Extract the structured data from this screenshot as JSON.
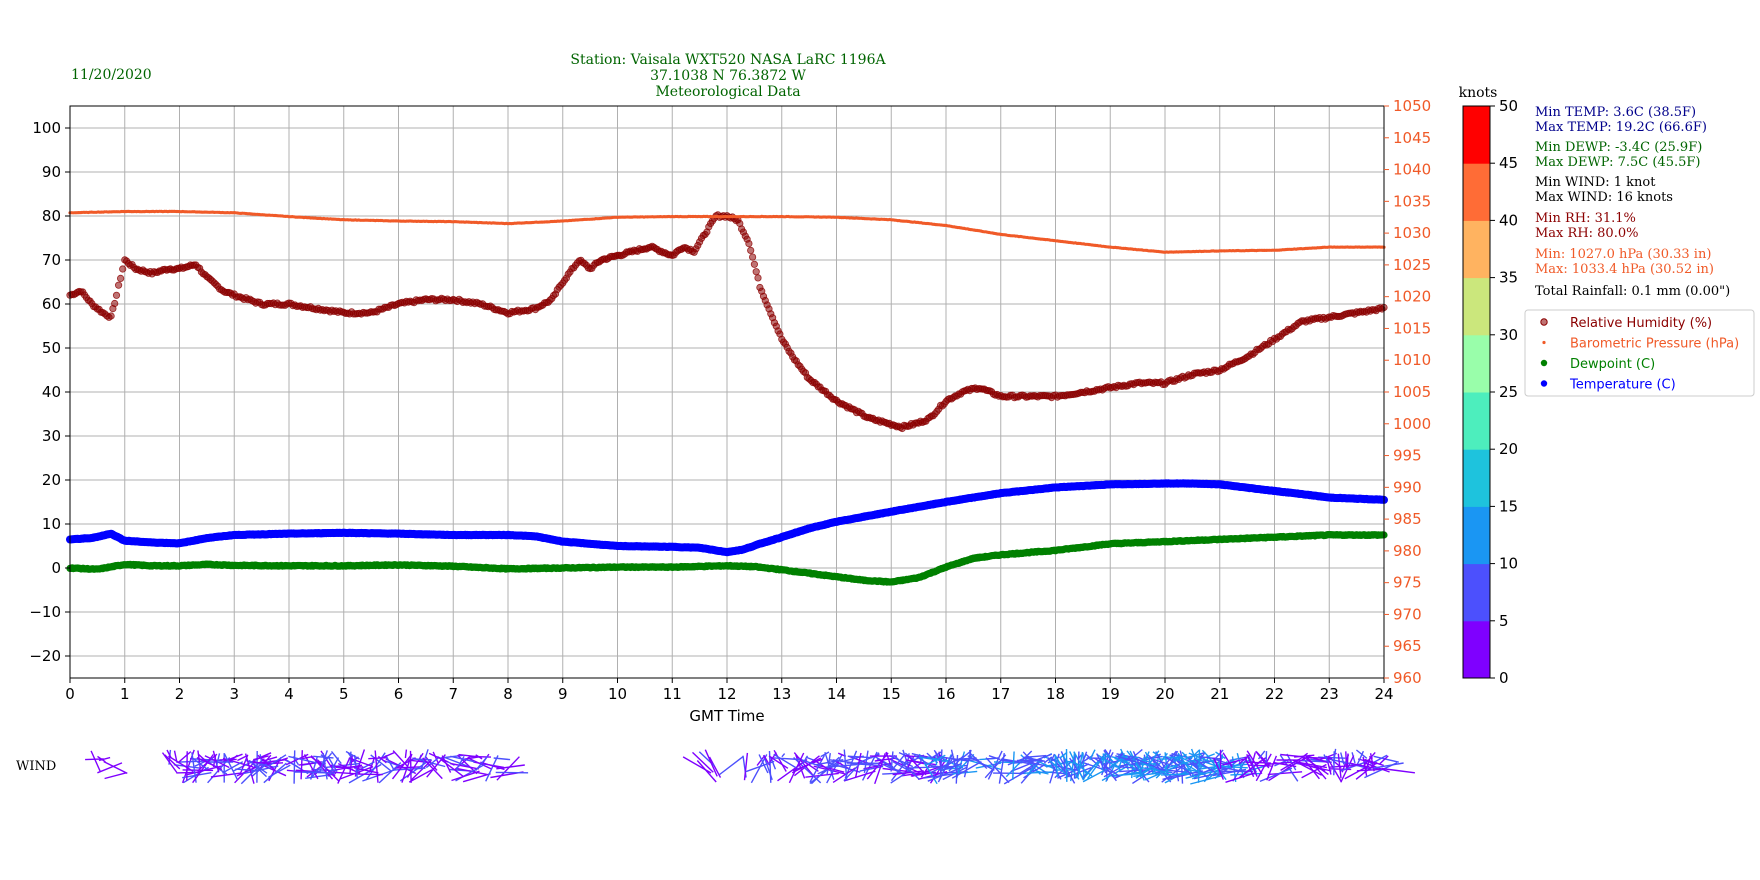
{
  "header": {
    "date": "11/20/2020",
    "title_lines": [
      "Station:  Vaisala WXT520  NASA LaRC 1196A",
      "37.1038 N 76.3872 W",
      "Meteorological Data"
    ]
  },
  "colors": {
    "title_green": "#006400",
    "rh": "#8b0000",
    "pressure": "#f05a28",
    "dewpoint": "#008000",
    "temperature": "#0000ff",
    "min_max_temp": "#00008b",
    "wind_text": "#000000"
  },
  "stats": [
    {
      "key": "min_temp",
      "text": "Min TEMP: 3.6C (38.5F)",
      "color": "#00008b"
    },
    {
      "key": "max_temp",
      "text": "Max TEMP: 19.2C (66.6F)",
      "color": "#00008b"
    },
    {
      "key": "min_dewp",
      "text": "Min DEWP: -3.4C (25.9F)",
      "color": "#006400"
    },
    {
      "key": "max_dewp",
      "text": "Max DEWP: 7.5C (45.5F)",
      "color": "#006400"
    },
    {
      "key": "min_wind",
      "text": "Min WIND: 1 knot",
      "color": "#000000"
    },
    {
      "key": "max_wind",
      "text": "Max WIND: 16 knots",
      "color": "#000000"
    },
    {
      "key": "min_rh",
      "text": "Min RH: 31.1%",
      "color": "#8b0000"
    },
    {
      "key": "max_rh",
      "text": "Max RH: 80.0%",
      "color": "#8b0000"
    },
    {
      "key": "min_press",
      "text": "Min: 1027.0 hPa (30.33 in)",
      "color": "#f05a28"
    },
    {
      "key": "max_press",
      "text": "Max: 1033.4 hPa (30.52 in)",
      "color": "#f05a28"
    },
    {
      "key": "rain",
      "text": "Total Rainfall: 0.1 mm (0.00\")",
      "color": "#000000"
    }
  ],
  "chart_data": {
    "type": "scatter",
    "xlabel": "GMT Time",
    "xlim": [
      0,
      24
    ],
    "x_ticks": [
      "0",
      "1",
      "2",
      "3",
      "4",
      "5",
      "6",
      "7",
      "8",
      "9",
      "10",
      "11",
      "12",
      "13",
      "14",
      "15",
      "16",
      "17",
      "18",
      "19",
      "20",
      "21",
      "22",
      "23",
      "24"
    ],
    "left_axis": {
      "ylim": [
        -25,
        105
      ],
      "ticks": [
        "−20",
        "−10",
        "0",
        "10",
        "20",
        "30",
        "40",
        "50",
        "60",
        "70",
        "80",
        "90",
        "100"
      ],
      "tick_values": [
        -20,
        -10,
        0,
        10,
        20,
        30,
        40,
        50,
        60,
        70,
        80,
        90,
        100
      ]
    },
    "right_axis": {
      "ylim": [
        960,
        1050
      ],
      "ticks": [
        "960",
        "965",
        "970",
        "975",
        "980",
        "985",
        "990",
        "995",
        "1000",
        "1005",
        "1010",
        "1015",
        "1020",
        "1025",
        "1030",
        "1035",
        "1040",
        "1045",
        "1050"
      ],
      "tick_values": [
        960,
        965,
        970,
        975,
        980,
        985,
        990,
        995,
        1000,
        1005,
        1010,
        1015,
        1020,
        1025,
        1030,
        1035,
        1040,
        1045,
        1050
      ],
      "color": "#f05a28"
    },
    "grid": true,
    "legend": {
      "placement": "right",
      "entries": [
        {
          "label": "Relative Humidity (%)",
          "color": "#8b0000",
          "text_color": "#8b0000"
        },
        {
          "label": "Barometric Pressure (hPa)",
          "color": "#f05a28",
          "text_color": "#f05a28"
        },
        {
          "label": "Dewpoint (C)",
          "color": "#008000",
          "text_color": "#008000"
        },
        {
          "label": "Temperature (C)",
          "color": "#0000ff",
          "text_color": "#0000ff"
        }
      ]
    },
    "series": [
      {
        "name": "Relative Humidity (%)",
        "axis": "left",
        "color": "#8b0000",
        "x": [
          0,
          0.2,
          0.4,
          0.6,
          0.75,
          0.85,
          1.0,
          1.2,
          1.5,
          1.8,
          2.0,
          2.3,
          2.5,
          2.8,
          3.0,
          3.5,
          4.0,
          4.5,
          5.0,
          5.5,
          6.0,
          6.5,
          7.0,
          7.5,
          8.0,
          8.5,
          8.8,
          9.0,
          9.3,
          9.5,
          9.7,
          10.0,
          10.3,
          10.6,
          10.8,
          11.0,
          11.2,
          11.4,
          11.6,
          11.8,
          12.0,
          12.2,
          12.4,
          12.6,
          12.8,
          13.0,
          13.2,
          13.5,
          13.8,
          14.0,
          14.3,
          14.6,
          14.9,
          15.2,
          15.5,
          15.7,
          16.0,
          16.3,
          16.6,
          16.8,
          17.0,
          17.5,
          18.0,
          18.5,
          19.0,
          19.5,
          20.0,
          20.5,
          21.0,
          21.5,
          22.0,
          22.5,
          23.0,
          23.5,
          24.0
        ],
        "y": [
          62,
          63,
          60,
          58,
          57,
          62,
          70,
          68,
          67,
          68,
          68,
          69,
          66,
          63,
          62,
          60,
          60,
          59,
          58,
          58,
          60,
          61,
          61,
          60,
          58,
          59,
          61,
          65,
          70,
          68,
          70,
          71,
          72,
          73,
          72,
          71,
          73,
          72,
          76,
          80,
          80,
          79,
          74,
          64,
          58,
          52,
          48,
          43,
          40,
          38,
          36,
          34,
          33,
          32,
          33,
          34,
          38,
          40,
          41,
          40,
          39,
          39,
          39,
          40,
          41,
          42,
          42,
          44,
          45,
          48,
          52,
          56,
          57,
          58,
          59
        ]
      },
      {
        "name": "Barometric Pressure (hPa)",
        "axis": "right",
        "color": "#f05a28",
        "x": [
          0,
          1,
          2,
          3,
          4,
          5,
          6,
          7,
          8,
          9,
          10,
          11,
          12,
          13,
          14,
          15,
          16,
          17,
          18,
          19,
          20,
          21,
          22,
          23,
          24
        ],
        "y": [
          1033.2,
          1033.4,
          1033.4,
          1033.2,
          1032.6,
          1032.1,
          1031.9,
          1031.8,
          1031.5,
          1031.9,
          1032.5,
          1032.6,
          1032.6,
          1032.6,
          1032.5,
          1032.1,
          1031.2,
          1029.8,
          1028.8,
          1027.8,
          1027.0,
          1027.2,
          1027.3,
          1027.8,
          1027.8
        ]
      },
      {
        "name": "Dewpoint (C)",
        "axis": "left",
        "color": "#008000",
        "x": [
          0,
          0.5,
          1.0,
          1.5,
          2.0,
          2.5,
          3,
          4,
          5,
          6,
          7,
          8,
          9,
          10,
          11,
          12,
          12.5,
          13,
          13.5,
          14,
          14.5,
          15,
          15.5,
          16,
          16.5,
          17,
          18,
          19,
          20,
          21,
          22,
          23,
          24
        ],
        "y": [
          0,
          -0.3,
          0.8,
          0.5,
          0.5,
          0.8,
          0.6,
          0.5,
          0.5,
          0.7,
          0.4,
          -0.2,
          0,
          0.2,
          0.2,
          0.5,
          0.3,
          -0.4,
          -1.2,
          -2.0,
          -2.8,
          -3.2,
          -2.2,
          0.2,
          2.2,
          3.0,
          4.0,
          5.5,
          6.0,
          6.5,
          7.0,
          7.5,
          7.5
        ]
      },
      {
        "name": "Temperature (C)",
        "axis": "left",
        "color": "#0000ff",
        "x": [
          0,
          0.4,
          0.75,
          1.0,
          1.5,
          2.0,
          2.5,
          3,
          4,
          5,
          6,
          7,
          8,
          8.5,
          9,
          10,
          11,
          11.5,
          12,
          12.3,
          12.6,
          13,
          13.5,
          14,
          15,
          16,
          17,
          18,
          19,
          20,
          20.5,
          21,
          22,
          22.5,
          23,
          24
        ],
        "y": [
          6.5,
          6.8,
          7.8,
          6.2,
          5.8,
          5.6,
          6.8,
          7.5,
          7.8,
          8.0,
          7.8,
          7.5,
          7.5,
          7.2,
          6.0,
          5.0,
          4.8,
          4.6,
          3.6,
          4.2,
          5.5,
          7.0,
          9.0,
          10.5,
          12.8,
          15.0,
          17.0,
          18.3,
          19.0,
          19.2,
          19.2,
          19.0,
          17.5,
          16.8,
          16.0,
          15.5
        ]
      }
    ],
    "wind_label": "WIND",
    "colorbar": {
      "title": "knots",
      "ticks": [
        "0",
        "5",
        "10",
        "15",
        "20",
        "25",
        "30",
        "35",
        "40",
        "45",
        "50"
      ],
      "bands": [
        "#7f00ff",
        "#4c50fd",
        "#1a96f3",
        "#1ec3dd",
        "#4deebd",
        "#99feaa",
        "#cbe77c",
        "#ffb360",
        "#ff6c36",
        "#ff0000"
      ]
    },
    "wind_barbs": [
      {
        "t": 0.6,
        "speed": 3
      },
      {
        "t": 2.5,
        "speed": 4
      },
      {
        "t": 3.6,
        "speed": 5
      },
      {
        "t": 5.3,
        "speed": 5
      },
      {
        "t": 7.6,
        "speed": 4
      },
      {
        "t": 11.8,
        "speed": 5
      },
      {
        "t": 14.5,
        "speed": 8
      },
      {
        "t": 17.5,
        "speed": 10
      },
      {
        "t": 20.7,
        "speed": 6
      },
      {
        "t": 23.5,
        "speed": 3
      }
    ]
  }
}
